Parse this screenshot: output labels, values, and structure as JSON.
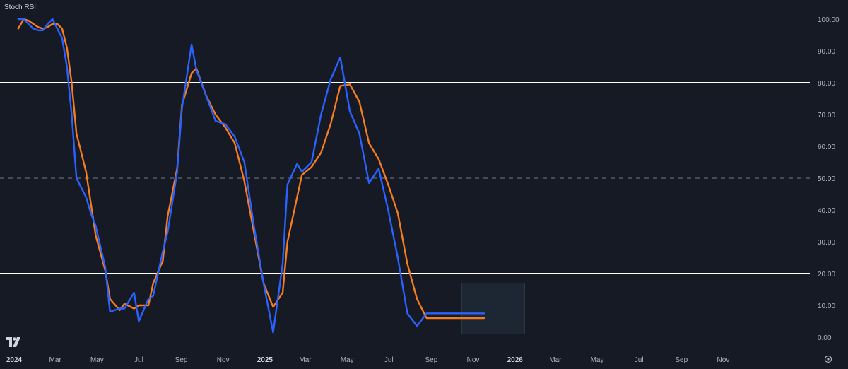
{
  "title": "Stoch RSI",
  "colors": {
    "background": "#161a25",
    "k_line": "#2962ff",
    "d_line": "#f57c1f",
    "band": "#ffffff",
    "midline": "#787b86",
    "highlight_box": "#1e2a36",
    "text": "#b2b5be"
  },
  "chart_data": {
    "type": "line",
    "xlabel": "",
    "ylabel": "",
    "ylim": [
      0,
      100
    ],
    "x_tick_labels": [
      "2024",
      "Mar",
      "May",
      "Jul",
      "Sep",
      "Nov",
      "2025",
      "Mar",
      "May",
      "Jul",
      "Sep",
      "Nov",
      "2026",
      "Mar",
      "May",
      "Jul",
      "Sep",
      "Nov"
    ],
    "y_tick_labels": [
      "100.00",
      "90.00",
      "80.00",
      "70.00",
      "60.00",
      "50.00",
      "40.00",
      "30.00",
      "20.00",
      "10.00",
      "0.00"
    ],
    "y_ticks": [
      100,
      90,
      80,
      70,
      60,
      50,
      40,
      30,
      20,
      10,
      0
    ],
    "bands": {
      "upper": 80,
      "middle": 50,
      "lower": 20
    },
    "highlight": {
      "start": "2025-10-15",
      "end": "2026-01-15",
      "ylow": 1,
      "yhigh": 17
    },
    "series": [
      {
        "dates": [
          "2024-01-07",
          "2024-01-15",
          "2024-01-22",
          "2024-01-29",
          "2024-02-05",
          "2024-02-12",
          "2024-02-19",
          "2024-02-26",
          "2024-03-04",
          "2024-03-11",
          "2024-03-18",
          "2024-03-25",
          "2024-04-01",
          "2024-04-15",
          "2024-04-22",
          "2024-04-29",
          "2024-05-13",
          "2024-05-20",
          "2024-06-03",
          "2024-06-10",
          "2024-06-24",
          "2024-07-01",
          "2024-07-15",
          "2024-07-22",
          "2024-08-05",
          "2024-08-12",
          "2024-08-26",
          "2024-09-02",
          "2024-09-16",
          "2024-09-23",
          "2024-10-07",
          "2024-10-21",
          "2024-11-04",
          "2024-11-18",
          "2024-12-02",
          "2024-12-16",
          "2024-12-30",
          "2025-01-13",
          "2025-01-27",
          "2025-02-03",
          "2025-02-17",
          "2025-02-24",
          "2025-03-10",
          "2025-03-24",
          "2025-04-07",
          "2025-04-21",
          "2025-05-05",
          "2025-05-19",
          "2025-06-02",
          "2025-06-16",
          "2025-06-30",
          "2025-07-14",
          "2025-07-28",
          "2025-08-11",
          "2025-08-25",
          "2025-09-08",
          "2025-09-22",
          "2025-10-06",
          "2025-10-20",
          "2025-11-03",
          "2025-11-17",
          "2025-12-01"
        ],
        "values": [
          100.0,
          100.0,
          98.5,
          97.0,
          96.5,
          96.5,
          98.5,
          100.0,
          97.0,
          94.0,
          85.0,
          70.0,
          50.0,
          44.0,
          39.0,
          35.0,
          22.0,
          8.0,
          9.0,
          9.0,
          14.0,
          5.0,
          12.0,
          13.0,
          27.0,
          33.0,
          52.0,
          72.0,
          92.0,
          84.0,
          76.0,
          68.0,
          67.0,
          63.0,
          55.0,
          35.0,
          17.0,
          1.5,
          23.0,
          48.0,
          54.5,
          52.0,
          55.0,
          70.0,
          81.0,
          88.0,
          71.0,
          64.0,
          48.5,
          53.0,
          40.0,
          25.0,
          7.5,
          3.5,
          7.5,
          7.5,
          7.5,
          7.5,
          7.5,
          7.5,
          7.5,
          7.5
        ]
      },
      {
        "dates": [
          "2024-01-07",
          "2024-01-15",
          "2024-01-22",
          "2024-01-29",
          "2024-02-05",
          "2024-02-12",
          "2024-02-19",
          "2024-02-26",
          "2024-03-04",
          "2024-03-11",
          "2024-03-18",
          "2024-03-25",
          "2024-04-01",
          "2024-04-15",
          "2024-04-22",
          "2024-04-29",
          "2024-05-13",
          "2024-05-20",
          "2024-06-03",
          "2024-06-10",
          "2024-06-24",
          "2024-07-01",
          "2024-07-15",
          "2024-07-22",
          "2024-08-05",
          "2024-08-12",
          "2024-08-26",
          "2024-09-02",
          "2024-09-16",
          "2024-09-23",
          "2024-10-07",
          "2024-10-21",
          "2024-11-04",
          "2024-11-18",
          "2024-12-02",
          "2024-12-16",
          "2024-12-30",
          "2025-01-13",
          "2025-01-27",
          "2025-02-03",
          "2025-02-17",
          "2025-02-24",
          "2025-03-10",
          "2025-03-24",
          "2025-04-07",
          "2025-04-21",
          "2025-05-05",
          "2025-05-19",
          "2025-06-02",
          "2025-06-16",
          "2025-06-30",
          "2025-07-14",
          "2025-07-28",
          "2025-08-11",
          "2025-08-25",
          "2025-09-08",
          "2025-09-22",
          "2025-10-06",
          "2025-10-20",
          "2025-11-03",
          "2025-11-17",
          "2025-12-01"
        ],
        "values": [
          97.0,
          100.0,
          99.5,
          98.5,
          97.5,
          97.0,
          97.5,
          98.5,
          98.5,
          97.0,
          91.0,
          80.0,
          64.0,
          52.0,
          42.0,
          32.0,
          21.0,
          12.0,
          8.5,
          10.5,
          9.0,
          10.0,
          10.0,
          17.0,
          24.0,
          38.0,
          53.0,
          73.0,
          83.0,
          84.5,
          76.0,
          70.0,
          66.0,
          61.0,
          49.0,
          33.0,
          17.0,
          9.5,
          14.0,
          30.0,
          44.0,
          51.0,
          53.5,
          58.0,
          67.0,
          79.0,
          79.5,
          74.0,
          61.0,
          56.0,
          48.0,
          39.0,
          23.0,
          12.0,
          6.0,
          6.0,
          6.0,
          6.0,
          6.0,
          6.0,
          6.0,
          6.0
        ]
      }
    ]
  }
}
